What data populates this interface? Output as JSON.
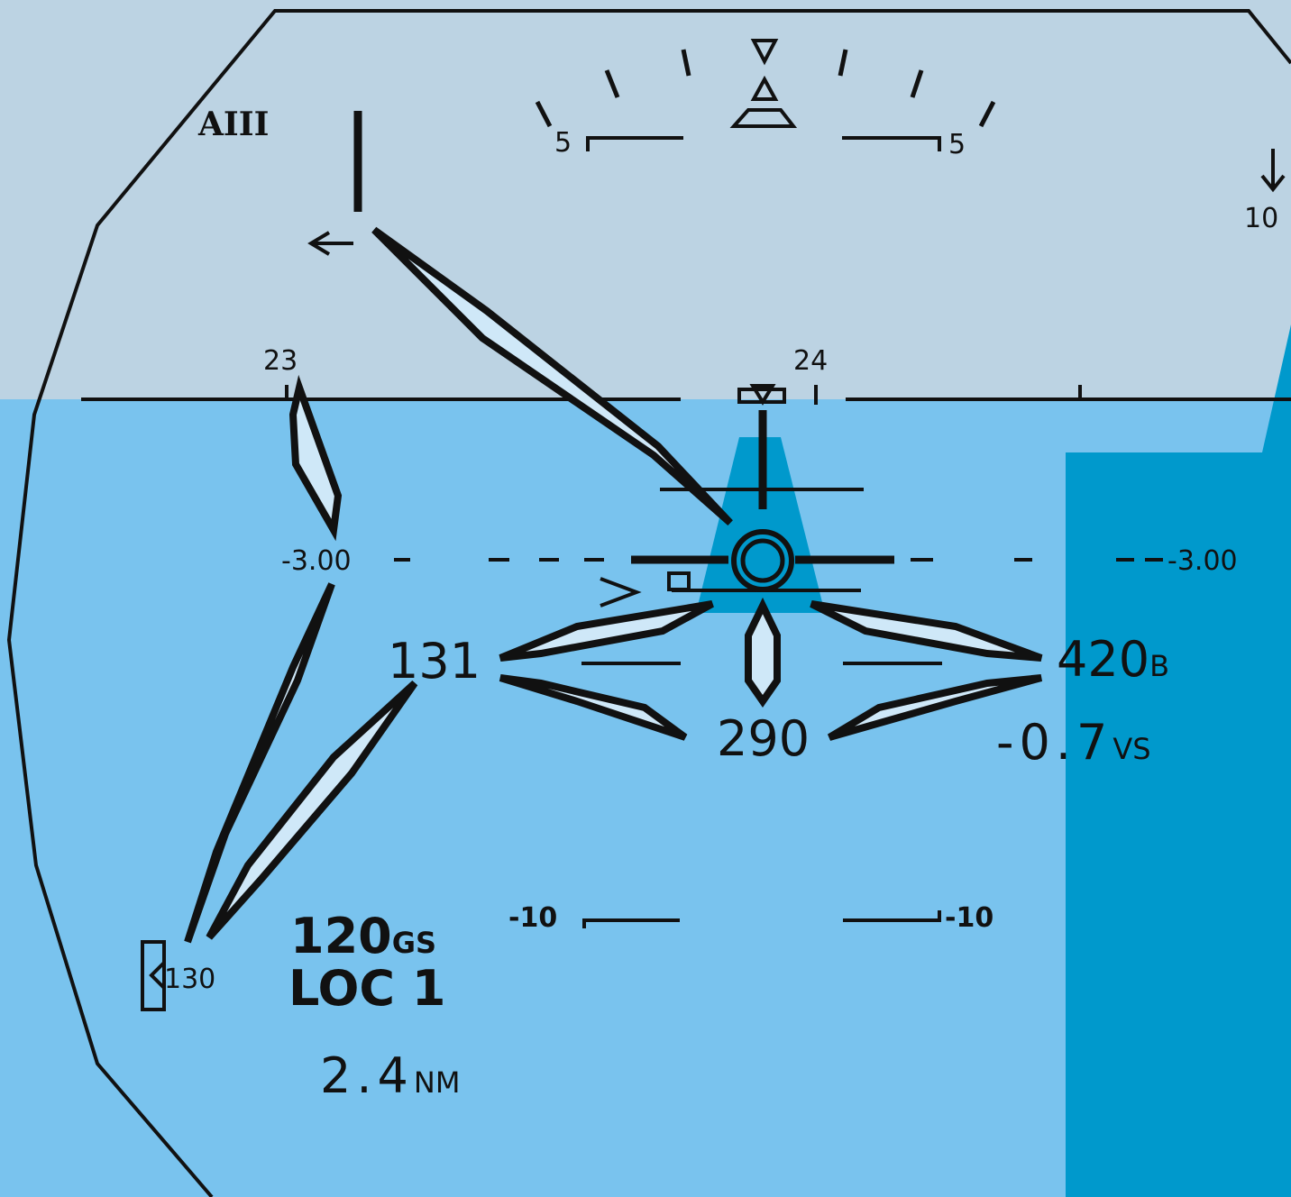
{
  "mode": "AIII",
  "pitch_scale": {
    "upper_left": "5",
    "upper_right": "5",
    "lower_left": "-10",
    "lower_right": "-10"
  },
  "heading": {
    "left": "23",
    "right": "24"
  },
  "corner_value": "10",
  "reference_lines": {
    "left": "-3.00",
    "right": "-3.00"
  },
  "airspeed": "131",
  "altitude": {
    "value": "420",
    "suffix": "B"
  },
  "heading_value": "290",
  "vertical_speed": {
    "value": "-0.7",
    "suffix": "VS"
  },
  "speed_bug": "130",
  "ground_speed": {
    "value": "120",
    "suffix": "GS"
  },
  "localizer": "LOC 1",
  "distance": {
    "value": "2.4",
    "suffix": "NM"
  }
}
